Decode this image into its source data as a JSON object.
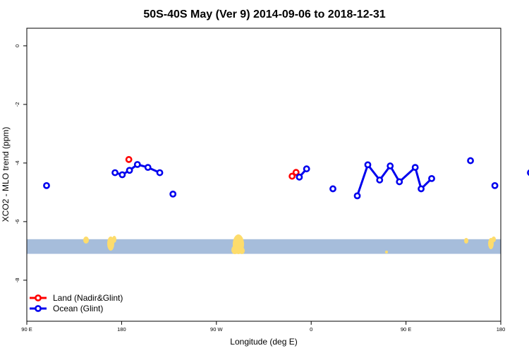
{
  "chart_data": {
    "type": "line",
    "title": "50S-40S May (Ver 9)   2014-09-06 to 2018-12-31",
    "xlabel": "Longitude (deg E)",
    "ylabel": "XCO2 - MLO trend (ppm)",
    "xlim": [
      90,
      450
    ],
    "ylim": [
      -9.4,
      0.6
    ],
    "x_ticks": [
      {
        "value": 90,
        "label": "90 E"
      },
      {
        "value": 180,
        "label": "180"
      },
      {
        "value": 270,
        "label": "90 W"
      },
      {
        "value": 360,
        "label": "0"
      },
      {
        "value": 450,
        "label": "90 E"
      },
      {
        "value": 540,
        "label": "180"
      }
    ],
    "y_ticks": [
      {
        "value": 0,
        "label": "0"
      },
      {
        "value": -2,
        "label": "-2"
      },
      {
        "value": -4,
        "label": "-4"
      },
      {
        "value": -6,
        "label": "-6"
      },
      {
        "value": -8,
        "label": "-8"
      }
    ],
    "map_strip": {
      "y_top": -6.6,
      "y_bottom": -7.1,
      "ocean_color": "#a6bddb",
      "land_color": "#fddc6c"
    },
    "legend_position": "bottom-left",
    "series": [
      {
        "name": "Land (Nadir&Glint)",
        "color": "#ff0000",
        "points": [
          [
            167.5,
            -3.88
          ],
          [
            291.5,
            -4.45
          ],
          [
            294.5,
            -4.32
          ],
          [
            484.5,
            -3.88
          ]
        ],
        "segments": [
          [
            1,
            2
          ]
        ]
      },
      {
        "name": "Ocean (Glint)",
        "color": "#0000ee",
        "points": [
          [
            105,
            -4.77
          ],
          [
            157,
            -4.33
          ],
          [
            162.5,
            -4.4
          ],
          [
            168,
            -4.25
          ],
          [
            174,
            -4.05
          ],
          [
            182,
            -4.15
          ],
          [
            191,
            -4.33
          ],
          [
            201,
            -5.06
          ],
          [
            297,
            -4.48
          ],
          [
            302.5,
            -4.2
          ],
          [
            322.5,
            -4.88
          ],
          [
            341,
            -5.12
          ],
          [
            349,
            -4.06
          ],
          [
            358,
            -4.58
          ],
          [
            366,
            -4.1
          ],
          [
            373,
            -4.64
          ],
          [
            385,
            -4.15
          ],
          [
            389.5,
            -4.88
          ],
          [
            397.5,
            -4.53
          ],
          [
            427,
            -3.92
          ],
          [
            445.5,
            -4.77
          ],
          [
            472.5,
            -4.33
          ],
          [
            480.5,
            -4.4
          ],
          [
            488,
            -4.25
          ]
        ],
        "segments": [
          [
            1,
            6
          ],
          [
            8,
            9
          ],
          [
            11,
            18
          ],
          [
            21,
            23
          ]
        ]
      }
    ]
  }
}
